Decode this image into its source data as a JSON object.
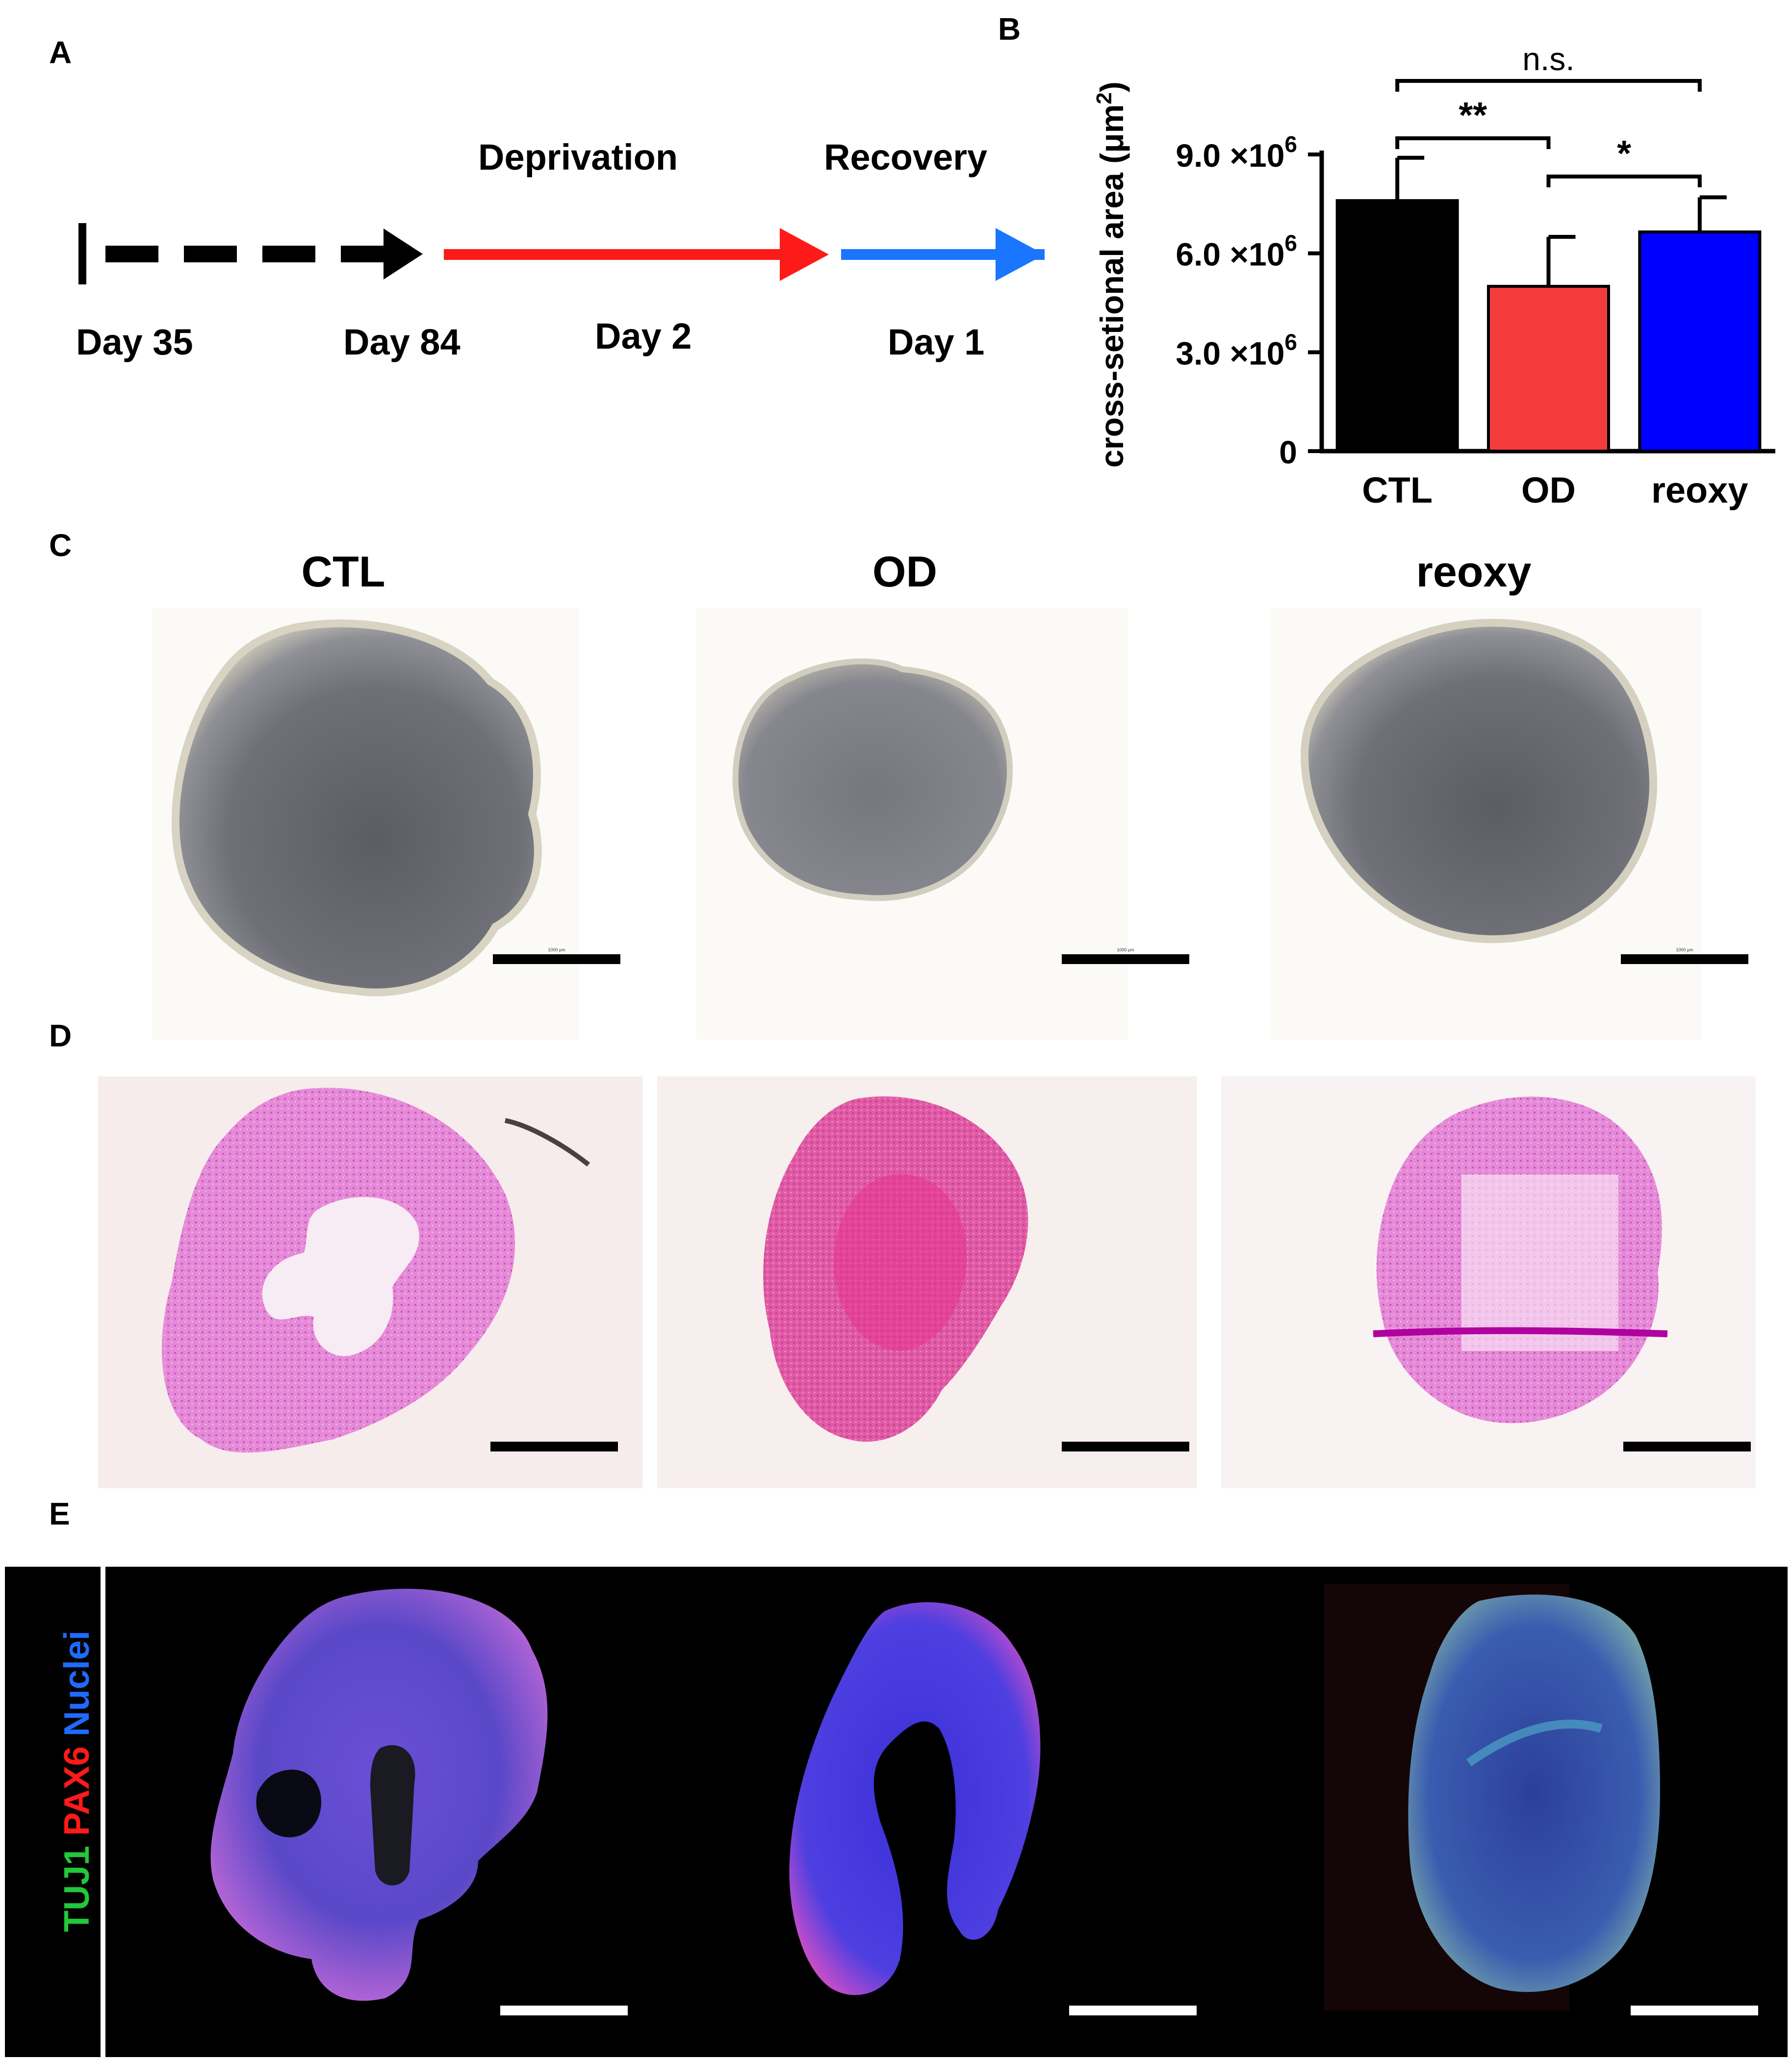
{
  "panels": {
    "a": {
      "letter": "A"
    },
    "b": {
      "letter": "B"
    },
    "c": {
      "letter": "C"
    },
    "d": {
      "letter": "D"
    },
    "e": {
      "letter": "E"
    }
  },
  "timeline": {
    "phase_labels": {
      "deprivation": "Deprivation",
      "recovery": "Recovery"
    },
    "day_labels": {
      "start": "Day 35",
      "end_culture": "Day 84",
      "deprivation": "Day 2",
      "recovery": "Day 1"
    },
    "colors": {
      "culture": "#000000",
      "deprivation": "#ff1a1a",
      "recovery": "#1a75ff"
    }
  },
  "columns": {
    "ctl": "CTL",
    "od": "OD",
    "reoxy": "reoxy"
  },
  "scalebar_labels": {
    "ctl": "1000 μm",
    "od": "1000 μm",
    "reoxy": "1000 μm"
  },
  "stain_label": {
    "tuj1": "TUJ1",
    "pax6": "PAX6",
    "nuclei": "Nuclei"
  },
  "stain_colors": {
    "tuj1": "#22c73a",
    "pax6": "#ff1a1a",
    "nuclei": "#1f6bff"
  },
  "chart_data": {
    "type": "bar",
    "ylabel": "cross-setional area (μm²)",
    "ylabel_main": "cross-setional area (μm",
    "ylabel_sup": "2",
    "ylabel_close": ")",
    "categories": [
      "CTL",
      "OD",
      "reoxy"
    ],
    "values": [
      7600000,
      5000000,
      6650000
    ],
    "errors": [
      1300000,
      1500000,
      1050000
    ],
    "colors": [
      "#000000",
      "#f53c3c",
      "#0000ff"
    ],
    "ylim": [
      0,
      9000000
    ],
    "yticks": [
      {
        "value": 0,
        "label": "0",
        "base": "",
        "exp": ""
      },
      {
        "value": 3000000,
        "label": "3.0 ×10⁶",
        "base": "3.0 ×10",
        "exp": "6"
      },
      {
        "value": 6000000,
        "label": "6.0 ×10⁶",
        "base": "6.0 ×10",
        "exp": "6"
      },
      {
        "value": 9000000,
        "label": "9.0 ×10⁶",
        "base": "9.0 ×10",
        "exp": "6"
      }
    ],
    "significance": [
      {
        "pair": [
          "CTL",
          "reoxy"
        ],
        "label": "n.s."
      },
      {
        "pair": [
          "CTL",
          "OD"
        ],
        "label": "**"
      },
      {
        "pair": [
          "OD",
          "reoxy"
        ],
        "label": "*"
      }
    ]
  }
}
